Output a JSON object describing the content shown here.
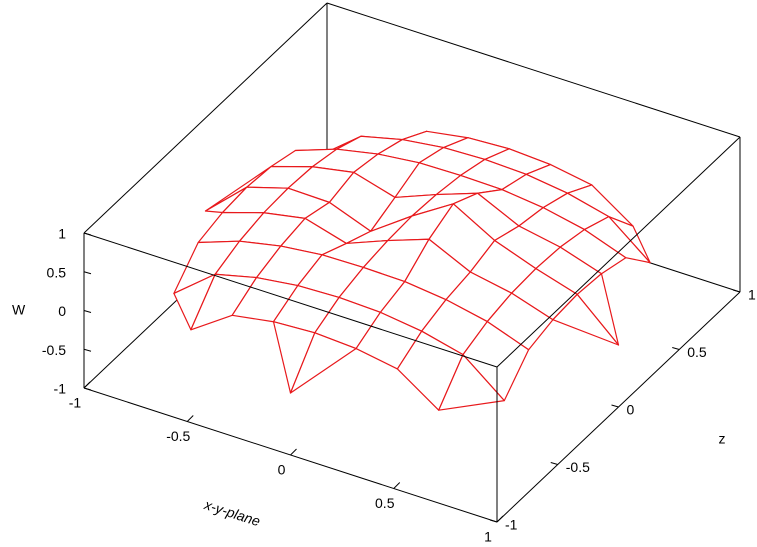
{
  "chart_data": {
    "type": "surface",
    "x_label": "x-y-plane",
    "z_label": "z",
    "y_label": "W",
    "x": [
      -1,
      -0.8,
      -0.6,
      -0.4,
      -0.2,
      0,
      0.2,
      0.4,
      0.6,
      0.8,
      1
    ],
    "z": [
      -1,
      -0.8,
      -0.6,
      -0.4,
      -0.2,
      0,
      0.2,
      0.4,
      0.6,
      0.8,
      1
    ],
    "values": [
      [
        null,
        null,
        null,
        null,
        null,
        -0.2,
        null,
        null,
        null,
        null,
        null
      ],
      [
        null,
        null,
        -0.2,
        0.16,
        0.25,
        0.28,
        0.25,
        0.16,
        -0.2,
        null,
        null
      ],
      [
        null,
        -0.2,
        0.22,
        0.35,
        0.42,
        0.44,
        0.42,
        0.35,
        0.22,
        -0.2,
        null
      ],
      [
        null,
        0.16,
        0.35,
        0.46,
        0.52,
        0.53,
        0.52,
        0.46,
        0.35,
        0.16,
        null
      ],
      [
        null,
        0.25,
        0.42,
        0.52,
        0.37,
        0.58,
        0.77,
        0.52,
        0.42,
        0.25,
        null
      ],
      [
        -0.2,
        0.28,
        0.44,
        0.43,
        0.23,
        0.6,
        0.93,
        0.63,
        0.44,
        0.28,
        -0.2
      ],
      [
        null,
        0.25,
        0.42,
        0.52,
        0.37,
        0.58,
        0.77,
        0.52,
        0.42,
        0.25,
        null
      ],
      [
        null,
        0.16,
        0.35,
        0.46,
        0.52,
        0.53,
        0.52,
        0.46,
        0.35,
        0.16,
        null
      ],
      [
        null,
        -0.2,
        0.22,
        0.35,
        0.42,
        0.44,
        0.42,
        0.35,
        0.22,
        -0.2,
        null
      ],
      [
        null,
        null,
        -0.2,
        0.16,
        0.25,
        0.28,
        0.25,
        0.16,
        -0.2,
        null,
        null
      ],
      [
        null,
        null,
        null,
        null,
        null,
        -0.2,
        null,
        null,
        null,
        null,
        null
      ]
    ],
    "color": "#e8191c",
    "xlim": [
      -1,
      1
    ],
    "zlim": [
      -1,
      1
    ],
    "ylim": [
      -1,
      1
    ],
    "xticks": [
      -1,
      -0.5,
      0,
      0.5,
      1
    ],
    "zticks": [
      -1,
      -0.5,
      0,
      0.5,
      1
    ],
    "yticks": [
      -1,
      -0.5,
      0,
      0.5,
      1
    ]
  }
}
